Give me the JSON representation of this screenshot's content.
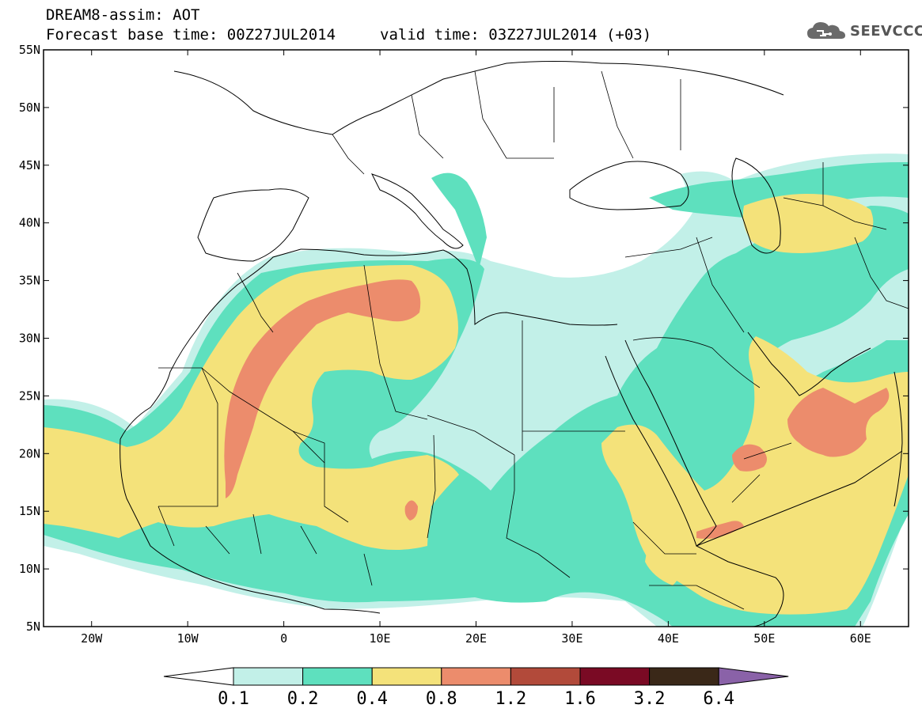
{
  "header": {
    "line1": "DREAM8-assim: AOT",
    "line2": "Forecast base time: 00Z27JUL2014",
    "valid": "valid time: 03Z27JUL2014 (+03)",
    "logo_text": "SEEVCCC",
    "logo_icon": "cloud-icon"
  },
  "map": {
    "lon_range": [
      -25,
      65
    ],
    "lat_range": [
      5,
      55
    ],
    "lat_ticks": [
      {
        "value": 55,
        "label": "55N"
      },
      {
        "value": 50,
        "label": "50N"
      },
      {
        "value": 45,
        "label": "45N"
      },
      {
        "value": 40,
        "label": "40N"
      },
      {
        "value": 35,
        "label": "35N"
      },
      {
        "value": 30,
        "label": "30N"
      },
      {
        "value": 25,
        "label": "25N"
      },
      {
        "value": 20,
        "label": "20N"
      },
      {
        "value": 15,
        "label": "15N"
      },
      {
        "value": 10,
        "label": "10N"
      },
      {
        "value": 5,
        "label": "5N"
      }
    ],
    "lon_ticks": [
      {
        "value": -20,
        "label": "20W"
      },
      {
        "value": -10,
        "label": "10W"
      },
      {
        "value": 0,
        "label": "0"
      },
      {
        "value": 10,
        "label": "10E"
      },
      {
        "value": 20,
        "label": "20E"
      },
      {
        "value": 30,
        "label": "30E"
      },
      {
        "value": 40,
        "label": "40E"
      },
      {
        "value": 50,
        "label": "50E"
      },
      {
        "value": 60,
        "label": "60E"
      }
    ]
  },
  "colorbar": {
    "colors": [
      "#c2f0e8",
      "#5ee0be",
      "#f4e27a",
      "#ec8c6c",
      "#b24a3a",
      "#7a0a24",
      "#3a2818",
      "#8a62a8"
    ],
    "labels": [
      "0.1",
      "0.2",
      "0.4",
      "0.8",
      "1.2",
      "1.6",
      "3.2",
      "6.4"
    ]
  }
}
